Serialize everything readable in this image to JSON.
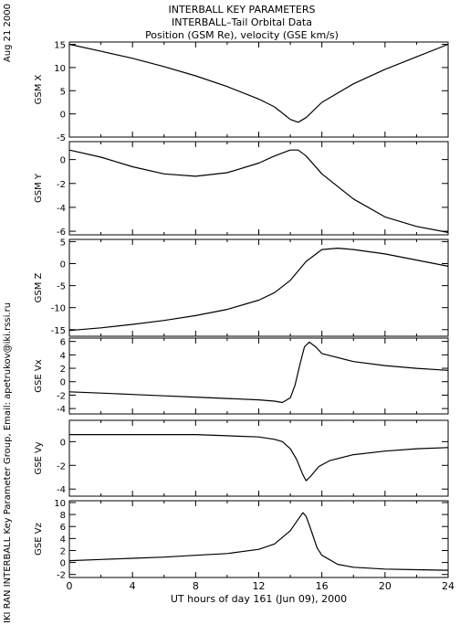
{
  "header": {
    "title_line1": "INTERBALL KEY PARAMETERS",
    "title_line2": "INTERBALL–Tail Orbital Data",
    "title_line3": "Position (GSM Re), velocity (GSE km/s)",
    "date_stamp": "Aug 21 2000",
    "credit": "IKI RAN INTERBALL Key Parameter Group, Email: apetrukov@iki.rssi.ru"
  },
  "chart_data": {
    "type": "line",
    "x_axis": {
      "label": "UT hours of day 161 (Jun 09), 2000",
      "range": [
        0,
        24
      ],
      "ticks": [
        0,
        4,
        8,
        12,
        16,
        20,
        24
      ]
    },
    "panels": [
      {
        "name": "GSM X",
        "ylim": [
          -5,
          15.5
        ],
        "ticks": [
          -5,
          0,
          5,
          10,
          15
        ],
        "x": [
          0,
          2,
          4,
          6,
          8,
          10,
          12,
          13,
          14,
          14.5,
          15,
          16,
          18,
          20,
          22,
          24
        ],
        "values": [
          15,
          13.5,
          12,
          10.2,
          8.2,
          5.9,
          3.2,
          1.5,
          -1.2,
          -1.8,
          -0.8,
          2.5,
          6.5,
          9.6,
          12.3,
          15
        ]
      },
      {
        "name": "GSM Y",
        "ylim": [
          -6.3,
          1.5
        ],
        "ticks": [
          -6,
          -4,
          -2,
          0
        ],
        "x": [
          0,
          2,
          4,
          6,
          8,
          10,
          12,
          13,
          14,
          14.5,
          15,
          16,
          18,
          20,
          22,
          24
        ],
        "values": [
          0.8,
          0.2,
          -0.6,
          -1.2,
          -1.4,
          -1.1,
          -0.3,
          0.3,
          0.8,
          0.8,
          0.3,
          -1.2,
          -3.3,
          -4.8,
          -5.6,
          -6.1
        ]
      },
      {
        "name": "GSM Z",
        "ylim": [
          -16.5,
          5.5
        ],
        "ticks": [
          -15,
          -10,
          -5,
          0,
          5
        ],
        "x": [
          0,
          2,
          4,
          6,
          8,
          10,
          12,
          13,
          14,
          15,
          16,
          17,
          18,
          20,
          22,
          24
        ],
        "values": [
          -15.2,
          -14.6,
          -13.8,
          -12.9,
          -11.8,
          -10.4,
          -8.3,
          -6.6,
          -3.8,
          0.5,
          3.2,
          3.5,
          3.2,
          2.2,
          0.8,
          -0.6
        ]
      },
      {
        "name": "GSE Vx",
        "ylim": [
          -4.8,
          6.5
        ],
        "ticks": [
          -4,
          -2,
          0,
          2,
          4,
          6
        ],
        "x": [
          0,
          2,
          4,
          6,
          8,
          10,
          12,
          13,
          13.5,
          14,
          14.3,
          14.6,
          14.9,
          15.2,
          15.6,
          16,
          18,
          20,
          22,
          24
        ],
        "values": [
          -1.5,
          -1.7,
          -1.9,
          -2.1,
          -2.3,
          -2.5,
          -2.7,
          -2.9,
          -3.1,
          -2.4,
          -0.5,
          2.5,
          5.2,
          5.9,
          5.2,
          4.2,
          3.0,
          2.4,
          2.0,
          1.7
        ]
      },
      {
        "name": "GSE Vy",
        "ylim": [
          -4.6,
          1.8
        ],
        "ticks": [
          -4,
          -2,
          0
        ],
        "x": [
          0,
          2,
          4,
          6,
          8,
          10,
          12,
          13,
          13.5,
          14,
          14.4,
          14.8,
          15,
          15.3,
          15.8,
          16.5,
          18,
          20,
          22,
          24
        ],
        "values": [
          0.6,
          0.6,
          0.6,
          0.6,
          0.6,
          0.5,
          0.4,
          0.2,
          0.0,
          -0.6,
          -1.5,
          -2.8,
          -3.3,
          -2.9,
          -2.1,
          -1.6,
          -1.1,
          -0.8,
          -0.6,
          -0.5
        ]
      },
      {
        "name": "GSE Vz",
        "ylim": [
          -2.5,
          10.3
        ],
        "ticks": [
          -2,
          0,
          2,
          4,
          6,
          8,
          10
        ],
        "x": [
          0,
          2,
          4,
          6,
          8,
          10,
          12,
          13,
          14,
          14.5,
          14.8,
          15,
          15.3,
          15.7,
          16,
          17,
          18,
          20,
          22,
          24
        ],
        "values": [
          0.3,
          0.5,
          0.7,
          0.9,
          1.2,
          1.5,
          2.2,
          3.1,
          5.3,
          7.2,
          8.3,
          7.7,
          5.5,
          2.4,
          1.2,
          -0.3,
          -0.8,
          -1.1,
          -1.2,
          -1.3
        ]
      }
    ]
  }
}
